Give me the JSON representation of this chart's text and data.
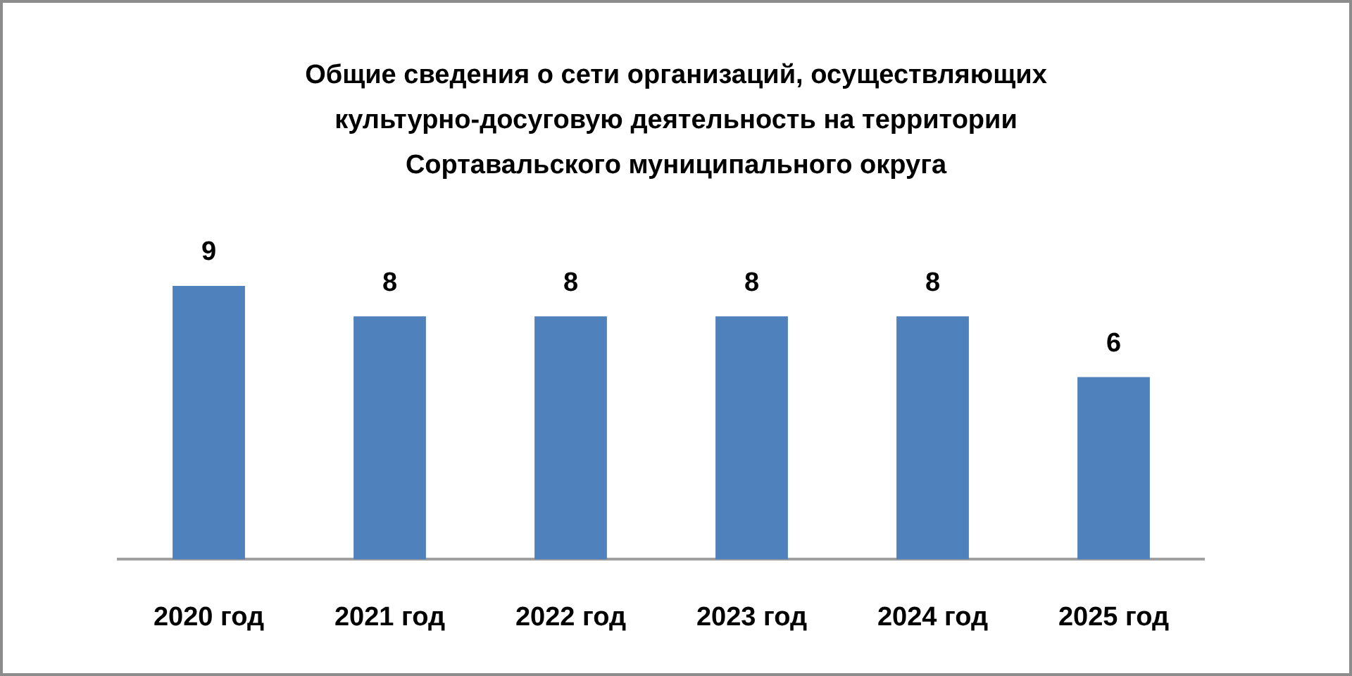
{
  "chart_data": {
    "type": "bar",
    "title": "Общие сведения о сети организаций, осуществляющих культурно-досуговую деятельность на территории Сортавальского муниципального округа",
    "categories": [
      "2020 год",
      "2021 год",
      "2022 год",
      "2023 год",
      "2024 год",
      "2025 год"
    ],
    "values": [
      9,
      8,
      8,
      8,
      8,
      6
    ],
    "color": "#4f81bd",
    "data_labels": true
  }
}
